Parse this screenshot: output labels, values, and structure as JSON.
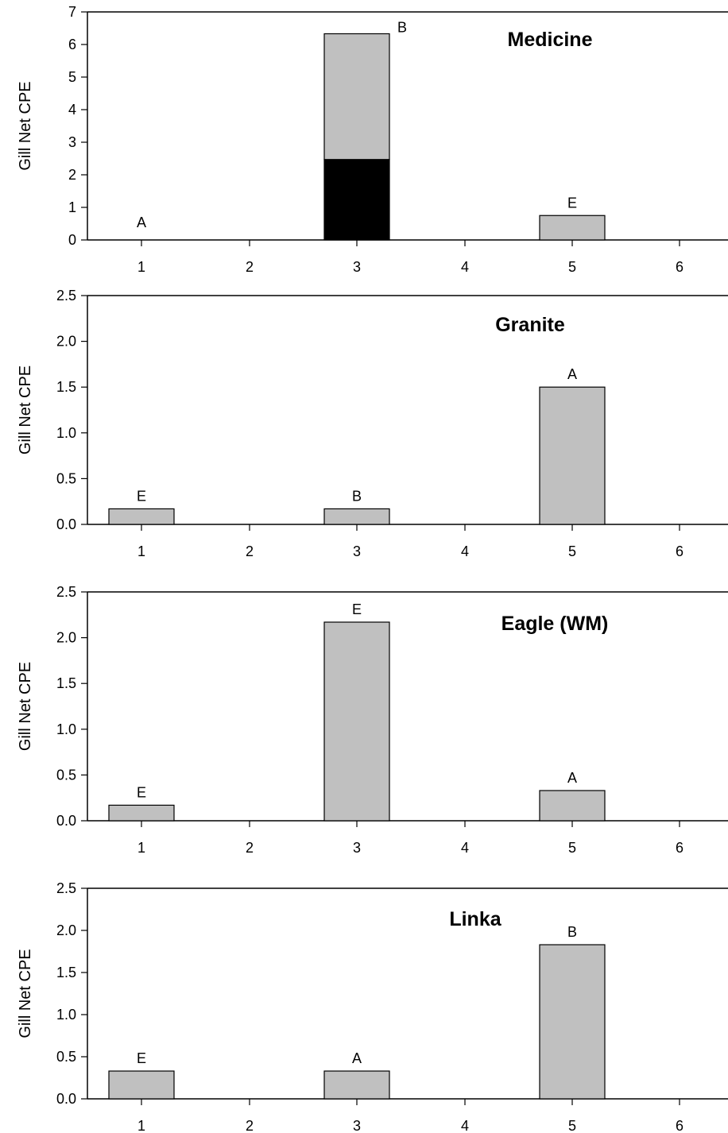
{
  "chart_data": [
    {
      "type": "bar",
      "title": "Medicine",
      "ylabel": "Gill Net CPE",
      "xlabel": "",
      "categories": [
        "1",
        "2",
        "3",
        "4",
        "5",
        "6"
      ],
      "ylim": [
        0,
        7
      ],
      "yticks": [
        "0",
        "1",
        "2",
        "3",
        "4",
        "5",
        "6",
        "7"
      ],
      "stacked": true,
      "series": [
        {
          "values": [
            0,
            0,
            2.47,
            0,
            0,
            0
          ],
          "color": "#000000"
        },
        {
          "values": [
            0,
            0,
            3.86,
            0,
            0.75,
            0
          ],
          "color": "#c0c0c0"
        }
      ],
      "bar_labels": [
        "A",
        "",
        "B",
        "",
        "E",
        ""
      ]
    },
    {
      "type": "bar",
      "title": "Granite",
      "ylabel": "Gill Net CPE",
      "xlabel": "",
      "categories": [
        "1",
        "2",
        "3",
        "4",
        "5",
        "6"
      ],
      "ylim": [
        0,
        2.5
      ],
      "yticks": [
        "0.0",
        "0.5",
        "1.0",
        "1.5",
        "2.0",
        "2.5"
      ],
      "stacked": false,
      "series": [
        {
          "values": [
            0.17,
            0,
            0.17,
            0,
            1.5,
            0
          ],
          "color": "#c0c0c0"
        }
      ],
      "bar_labels": [
        "E",
        "",
        "B",
        "",
        "A",
        ""
      ]
    },
    {
      "type": "bar",
      "title": "Eagle (WM)",
      "ylabel": "Gill Net CPE",
      "xlabel": "",
      "categories": [
        "1",
        "2",
        "3",
        "4",
        "5",
        "6"
      ],
      "ylim": [
        0,
        2.5
      ],
      "yticks": [
        "0.0",
        "0.5",
        "1.0",
        "1.5",
        "2.0",
        "2.5"
      ],
      "stacked": false,
      "series": [
        {
          "values": [
            0.17,
            0,
            2.17,
            0,
            0.33,
            0
          ],
          "color": "#c0c0c0"
        }
      ],
      "bar_labels": [
        "E",
        "",
        "E",
        "",
        "A",
        ""
      ]
    },
    {
      "type": "bar",
      "title": "Linka",
      "ylabel": "Gill Net CPE",
      "xlabel": "",
      "categories": [
        "1",
        "2",
        "3",
        "4",
        "5",
        "6"
      ],
      "ylim": [
        0,
        2.5
      ],
      "yticks": [
        "0.0",
        "0.5",
        "1.0",
        "1.5",
        "2.0",
        "2.5"
      ],
      "stacked": false,
      "series": [
        {
          "values": [
            0.33,
            0,
            0.33,
            0,
            1.83,
            0
          ],
          "color": "#c0c0c0"
        }
      ],
      "bar_labels": [
        "E",
        "",
        "A",
        "",
        "B",
        ""
      ]
    }
  ]
}
